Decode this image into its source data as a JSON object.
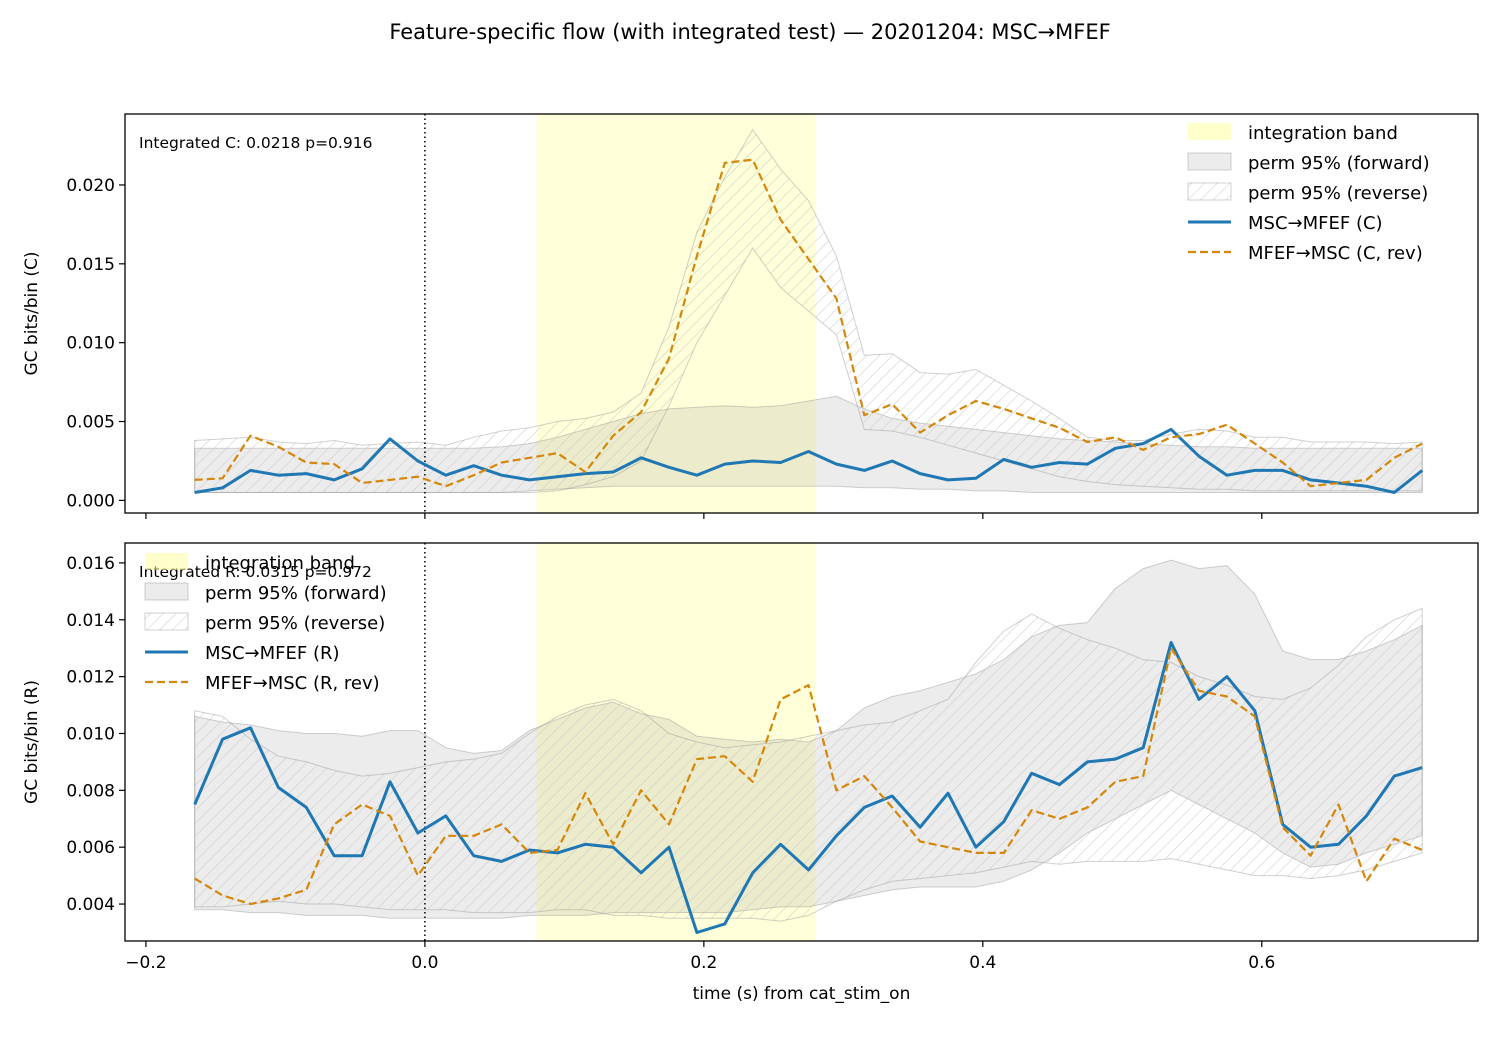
{
  "figure": {
    "title": "Feature-specific flow (with integrated test) — 20201204: MSC→MFEF"
  },
  "chart_data": [
    {
      "type": "line",
      "ylabel": "GC bits/bin (C)",
      "xlabel": "",
      "xlim": [
        -0.215,
        0.755
      ],
      "ylim": [
        -0.0008,
        0.0245
      ],
      "x_ticks": [
        -0.2,
        0.0,
        0.2,
        0.4,
        0.6
      ],
      "x_tick_labels": [
        "",
        "",
        "",
        "",
        ""
      ],
      "y_ticks": [
        0.0,
        0.005,
        0.01,
        0.015,
        0.02
      ],
      "y_tick_labels": [
        "0.000",
        "0.005",
        "0.010",
        "0.015",
        "0.020"
      ],
      "annotation": "Integrated C: 0.0218  p=0.916",
      "vline_x": 0.0,
      "integration_band": [
        0.08,
        0.28
      ],
      "legend_position": "upper right",
      "legend": [
        "integration band",
        "perm 95% (forward)",
        "perm 95% (reverse)",
        "MSC→MFEF (C)",
        "MFEF→MSC (C, rev)"
      ],
      "x": [
        -0.165,
        -0.145,
        -0.125,
        -0.105,
        -0.085,
        -0.065,
        -0.045,
        -0.025,
        -0.005,
        0.015,
        0.035,
        0.055,
        0.075,
        0.095,
        0.115,
        0.135,
        0.155,
        0.175,
        0.195,
        0.215,
        0.235,
        0.255,
        0.275,
        0.295,
        0.315,
        0.335,
        0.355,
        0.375,
        0.395,
        0.415,
        0.435,
        0.455,
        0.475,
        0.495,
        0.515,
        0.535,
        0.555,
        0.575,
        0.595,
        0.615,
        0.635,
        0.655,
        0.675,
        0.695,
        0.715
      ],
      "series": [
        {
          "name": "MSC→MFEF (C)",
          "color": "#1f77b4",
          "values": [
            0.0005,
            0.0008,
            0.0019,
            0.0016,
            0.0017,
            0.0013,
            0.002,
            0.0039,
            0.0025,
            0.0016,
            0.0022,
            0.0016,
            0.0013,
            0.0015,
            0.0017,
            0.0018,
            0.0027,
            0.0021,
            0.0016,
            0.0023,
            0.0025,
            0.0024,
            0.0031,
            0.0023,
            0.0019,
            0.0025,
            0.0017,
            0.0013,
            0.0014,
            0.0026,
            0.0021,
            0.0024,
            0.0023,
            0.0033,
            0.0036,
            0.0045,
            0.0028,
            0.0016,
            0.0019,
            0.0019,
            0.0013,
            0.0011,
            0.0009,
            0.0005,
            0.0019
          ]
        },
        {
          "name": "MFEF→MSC (C, rev)",
          "color": "#d4870a",
          "values": [
            0.0013,
            0.0014,
            0.0041,
            0.0034,
            0.0024,
            0.0023,
            0.0011,
            0.0013,
            0.0015,
            0.0009,
            0.0016,
            0.0024,
            0.0027,
            0.003,
            0.0018,
            0.0041,
            0.0056,
            0.009,
            0.0155,
            0.0214,
            0.0216,
            0.0178,
            0.0153,
            0.0128,
            0.0054,
            0.0061,
            0.0043,
            0.0054,
            0.0063,
            0.0058,
            0.0052,
            0.0046,
            0.0037,
            0.004,
            0.0032,
            0.004,
            0.0042,
            0.0048,
            0.0036,
            0.0024,
            0.0009,
            0.0011,
            0.0013,
            0.0027,
            0.0036
          ]
        }
      ],
      "perm_forward": {
        "name": "perm 95% (forward)",
        "lower": [
          0.0005,
          0.0005,
          0.0005,
          0.0005,
          0.0005,
          0.0005,
          0.0005,
          0.0005,
          0.0005,
          0.0005,
          0.0005,
          0.0005,
          0.0006,
          0.0007,
          0.0008,
          0.0009,
          0.0009,
          0.0009,
          0.0009,
          0.0009,
          0.0009,
          0.0009,
          0.0009,
          0.0009,
          0.0008,
          0.0008,
          0.0007,
          0.0007,
          0.0006,
          0.0006,
          0.0005,
          0.0005,
          0.0005,
          0.0005,
          0.0005,
          0.0005,
          0.0005,
          0.0005,
          0.0005,
          0.0005,
          0.0005,
          0.0005,
          0.0005,
          0.0005,
          0.0005
        ],
        "upper": [
          0.0033,
          0.0033,
          0.0033,
          0.0033,
          0.0033,
          0.0033,
          0.0033,
          0.0033,
          0.0033,
          0.0033,
          0.0033,
          0.0034,
          0.0036,
          0.004,
          0.0045,
          0.005,
          0.0055,
          0.0058,
          0.0059,
          0.006,
          0.0059,
          0.006,
          0.0063,
          0.0066,
          0.0058,
          0.0052,
          0.0049,
          0.0047,
          0.0045,
          0.0043,
          0.0041,
          0.0039,
          0.0038,
          0.0037,
          0.0036,
          0.0035,
          0.0034,
          0.0034,
          0.0033,
          0.0033,
          0.0033,
          0.0033,
          0.0033,
          0.0033,
          0.0033
        ]
      },
      "perm_reverse": {
        "name": "perm 95% (reverse)",
        "lower": [
          0.0005,
          0.0005,
          0.0005,
          0.0005,
          0.0005,
          0.0005,
          0.0005,
          0.0005,
          0.0005,
          0.0005,
          0.0005,
          0.0005,
          0.0005,
          0.0006,
          0.001,
          0.0015,
          0.0025,
          0.006,
          0.01,
          0.013,
          0.016,
          0.0135,
          0.012,
          0.0105,
          0.0045,
          0.0044,
          0.004,
          0.0035,
          0.003,
          0.0025,
          0.002,
          0.0015,
          0.0012,
          0.001,
          0.0009,
          0.0008,
          0.0007,
          0.0007,
          0.0006,
          0.0006,
          0.0006,
          0.0006,
          0.0006,
          0.0006,
          0.0006
        ],
        "upper": [
          0.0038,
          0.0039,
          0.004,
          0.0037,
          0.0036,
          0.0038,
          0.0035,
          0.0036,
          0.0037,
          0.0035,
          0.004,
          0.0044,
          0.0046,
          0.005,
          0.0052,
          0.0056,
          0.0068,
          0.011,
          0.017,
          0.0205,
          0.0235,
          0.021,
          0.019,
          0.0155,
          0.0092,
          0.0093,
          0.0081,
          0.008,
          0.0083,
          0.0073,
          0.0063,
          0.0052,
          0.004,
          0.0038,
          0.0038,
          0.0042,
          0.0045,
          0.0044,
          0.004,
          0.004,
          0.0037,
          0.0037,
          0.0037,
          0.0036,
          0.0037
        ]
      }
    },
    {
      "type": "line",
      "ylabel": "GC bits/bin (R)",
      "xlabel": "time (s) from cat_stim_on",
      "xlim": [
        -0.215,
        0.755
      ],
      "ylim": [
        0.0027,
        0.0167
      ],
      "x_ticks": [
        -0.2,
        0.0,
        0.2,
        0.4,
        0.6
      ],
      "x_tick_labels": [
        "−0.2",
        "0.0",
        "0.2",
        "0.4",
        "0.6"
      ],
      "y_ticks": [
        0.004,
        0.006,
        0.008,
        0.01,
        0.012,
        0.014,
        0.016
      ],
      "y_tick_labels": [
        "0.004",
        "0.006",
        "0.008",
        "0.010",
        "0.012",
        "0.014",
        "0.016"
      ],
      "annotation": "Integrated R: 0.0315  p=0.972",
      "vline_x": 0.0,
      "integration_band": [
        0.08,
        0.28
      ],
      "legend_position": "upper left",
      "legend": [
        "integration band",
        "perm 95% (forward)",
        "perm 95% (reverse)",
        "MSC→MFEF (R)",
        "MFEF→MSC (R, rev)"
      ],
      "x": [
        -0.165,
        -0.145,
        -0.125,
        -0.105,
        -0.085,
        -0.065,
        -0.045,
        -0.025,
        -0.005,
        0.015,
        0.035,
        0.055,
        0.075,
        0.095,
        0.115,
        0.135,
        0.155,
        0.175,
        0.195,
        0.215,
        0.235,
        0.255,
        0.275,
        0.295,
        0.315,
        0.335,
        0.355,
        0.375,
        0.395,
        0.415,
        0.435,
        0.455,
        0.475,
        0.495,
        0.515,
        0.535,
        0.555,
        0.575,
        0.595,
        0.615,
        0.635,
        0.655,
        0.675,
        0.695,
        0.715
      ],
      "series": [
        {
          "name": "MSC→MFEF (R)",
          "color": "#1f77b4",
          "values": [
            0.0075,
            0.0098,
            0.0102,
            0.0081,
            0.0074,
            0.0057,
            0.0057,
            0.0083,
            0.0065,
            0.0071,
            0.0057,
            0.0055,
            0.0059,
            0.0058,
            0.0061,
            0.006,
            0.0051,
            0.006,
            0.003,
            0.0033,
            0.0051,
            0.0061,
            0.0052,
            0.0064,
            0.0074,
            0.0078,
            0.0067,
            0.0079,
            0.006,
            0.0069,
            0.0086,
            0.0082,
            0.009,
            0.0091,
            0.0095,
            0.0132,
            0.0112,
            0.012,
            0.0108,
            0.0068,
            0.006,
            0.0061,
            0.0071,
            0.0085,
            0.0088
          ]
        },
        {
          "name": "MFEF→MSC (R, rev)",
          "color": "#d4870a",
          "values": [
            0.0049,
            0.0043,
            0.004,
            0.0042,
            0.0045,
            0.0068,
            0.0075,
            0.0071,
            0.005,
            0.0064,
            0.0064,
            0.0068,
            0.0058,
            0.0059,
            0.0079,
            0.0061,
            0.008,
            0.0068,
            0.0091,
            0.0092,
            0.0083,
            0.0112,
            0.0117,
            0.008,
            0.0085,
            0.0074,
            0.0062,
            0.006,
            0.0058,
            0.0058,
            0.0073,
            0.007,
            0.0074,
            0.0083,
            0.0085,
            0.013,
            0.0115,
            0.0113,
            0.0106,
            0.0067,
            0.0057,
            0.0075,
            0.0048,
            0.0063,
            0.0059
          ]
        }
      ],
      "perm_forward": {
        "name": "perm 95% (forward)",
        "lower": [
          0.0038,
          0.0038,
          0.0037,
          0.0037,
          0.0036,
          0.0036,
          0.0036,
          0.0035,
          0.0035,
          0.0035,
          0.0035,
          0.0035,
          0.0036,
          0.0036,
          0.0036,
          0.0037,
          0.0037,
          0.0037,
          0.0037,
          0.0037,
          0.0038,
          0.0039,
          0.0039,
          0.0041,
          0.0043,
          0.0045,
          0.0046,
          0.0046,
          0.0046,
          0.0048,
          0.0052,
          0.0058,
          0.0065,
          0.007,
          0.0075,
          0.008,
          0.0075,
          0.007,
          0.0065,
          0.0058,
          0.0053,
          0.0054,
          0.0058,
          0.0061,
          0.0064
        ],
        "upper": [
          0.0106,
          0.0104,
          0.0103,
          0.0101,
          0.01,
          0.01,
          0.0099,
          0.0101,
          0.0101,
          0.0095,
          0.0093,
          0.0094,
          0.0101,
          0.0105,
          0.0109,
          0.0111,
          0.0107,
          0.0105,
          0.0099,
          0.0098,
          0.0097,
          0.0098,
          0.0097,
          0.0101,
          0.0109,
          0.0113,
          0.0115,
          0.0118,
          0.0121,
          0.0126,
          0.0134,
          0.0138,
          0.0139,
          0.0151,
          0.0158,
          0.0161,
          0.0158,
          0.0159,
          0.0149,
          0.0129,
          0.0126,
          0.0126,
          0.0129,
          0.0133,
          0.0138
        ]
      },
      "perm_reverse": {
        "name": "perm 95% (reverse)",
        "lower": [
          0.0039,
          0.0039,
          0.004,
          0.0041,
          0.004,
          0.004,
          0.0039,
          0.0038,
          0.0038,
          0.0038,
          0.0037,
          0.0037,
          0.0037,
          0.0038,
          0.0038,
          0.0036,
          0.0036,
          0.0035,
          0.0035,
          0.0035,
          0.0035,
          0.0034,
          0.0036,
          0.0041,
          0.0045,
          0.0048,
          0.0049,
          0.005,
          0.0051,
          0.0053,
          0.0055,
          0.0054,
          0.0055,
          0.0055,
          0.0055,
          0.0056,
          0.0054,
          0.0052,
          0.005,
          0.005,
          0.0049,
          0.005,
          0.0052,
          0.0055,
          0.0058
        ],
        "upper": [
          0.0108,
          0.0106,
          0.0098,
          0.0092,
          0.009,
          0.0087,
          0.0085,
          0.0086,
          0.0088,
          0.009,
          0.0091,
          0.0093,
          0.01,
          0.0106,
          0.011,
          0.0112,
          0.0108,
          0.01,
          0.0097,
          0.0095,
          0.0096,
          0.0097,
          0.0099,
          0.0101,
          0.0103,
          0.0104,
          0.0108,
          0.0112,
          0.0125,
          0.0136,
          0.0142,
          0.0137,
          0.0133,
          0.013,
          0.0126,
          0.0125,
          0.012,
          0.0117,
          0.0113,
          0.0112,
          0.0116,
          0.0124,
          0.0134,
          0.014,
          0.0144
        ]
      }
    }
  ]
}
